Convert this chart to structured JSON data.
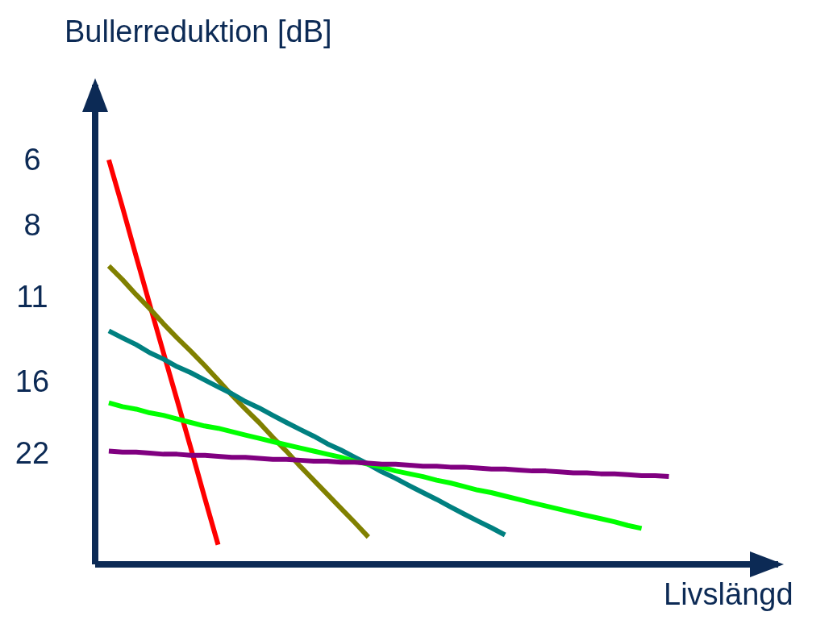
{
  "chart_data": {
    "type": "line",
    "xlabel": "Livslängd",
    "ylabel": "Bullerreduktion [dB]",
    "log": "y",
    "ylim": [
      36,
      4.3
    ],
    "yticks": [
      6,
      8,
      11,
      16,
      22
    ],
    "tick_labels": "y",
    "grid": false,
    "legend": false,
    "marker": "none",
    "line_style": "solid",
    "categories": [
      null,
      null,
      null,
      null,
      null,
      null,
      null,
      null,
      null,
      null,
      null,
      null,
      null,
      null,
      null,
      null,
      null,
      null,
      null,
      null,
      null,
      null,
      null,
      null,
      null,
      null,
      null,
      null,
      null,
      null,
      null,
      null,
      null,
      null,
      null,
      null,
      null,
      null,
      null,
      null,
      null,
      null,
      null,
      null,
      null,
      null,
      null,
      null,
      null,
      null,
      null
    ],
    "series": [
      {
        "color": "#ff0000",
        "values": [
          null,
          6,
          7.4,
          9.2,
          11.4,
          14.1,
          17.4,
          21.5,
          26.7,
          33,
          null,
          null,
          null,
          null,
          null,
          null,
          null,
          null,
          null,
          null,
          null,
          null,
          null,
          null,
          null,
          null,
          null,
          null,
          null,
          null,
          null,
          null,
          null,
          null,
          null,
          null,
          null,
          null,
          null,
          null,
          null,
          null,
          null,
          null,
          null,
          null,
          null,
          null,
          null,
          null,
          null
        ]
      },
      {
        "color": "#808000",
        "values": [
          null,
          9.6,
          10.2,
          10.9,
          11.6,
          12.4,
          13.2,
          14.0,
          14.9,
          15.9,
          17.0,
          18.1,
          19.2,
          20.5,
          21.8,
          23.3,
          24.8,
          26.4,
          28.1,
          29.9,
          31.9,
          null,
          null,
          null,
          null,
          null,
          null,
          null,
          null,
          null,
          null,
          null,
          null,
          null,
          null,
          null,
          null,
          null,
          null,
          null,
          null,
          null,
          null,
          null,
          null,
          null,
          null,
          null,
          null,
          null,
          null
        ]
      },
      {
        "color": "#008080",
        "values": [
          null,
          12.8,
          13.2,
          13.6,
          14.1,
          14.5,
          15.0,
          15.4,
          15.9,
          16.4,
          16.9,
          17.5,
          18.0,
          18.6,
          19.2,
          19.8,
          20.4,
          21.1,
          21.7,
          22.4,
          23.1,
          23.9,
          24.6,
          25.4,
          26.2,
          27.0,
          27.9,
          28.8,
          29.7,
          30.6,
          31.6,
          null,
          null,
          null,
          null,
          null,
          null,
          null,
          null,
          null,
          null,
          null,
          null,
          null,
          null,
          null,
          null,
          null,
          null,
          null,
          null
        ]
      },
      {
        "color": "#00ff00",
        "values": [
          null,
          17.6,
          17.9,
          18.1,
          18.4,
          18.6,
          18.9,
          19.2,
          19.5,
          19.7,
          20.0,
          20.3,
          20.6,
          20.9,
          21.2,
          21.5,
          21.8,
          22.1,
          22.4,
          22.8,
          23.1,
          23.4,
          23.8,
          24.1,
          24.4,
          24.8,
          25.1,
          25.5,
          25.9,
          26.2,
          26.6,
          27.0,
          27.4,
          27.8,
          28.2,
          28.6,
          29.0,
          29.4,
          29.8,
          30.3,
          30.7,
          null,
          null,
          null,
          null,
          null,
          null,
          null,
          null,
          null,
          null
        ]
      },
      {
        "color": "#800080",
        "values": [
          null,
          21.8,
          21.9,
          21.9,
          22.0,
          22.1,
          22.1,
          22.2,
          22.2,
          22.3,
          22.4,
          22.4,
          22.5,
          22.6,
          22.6,
          22.7,
          22.8,
          22.8,
          22.9,
          22.9,
          23.0,
          23.1,
          23.1,
          23.2,
          23.3,
          23.3,
          23.4,
          23.4,
          23.5,
          23.6,
          23.6,
          23.7,
          23.8,
          23.8,
          23.9,
          24.0,
          24.0,
          24.1,
          24.1,
          24.2,
          24.3,
          24.3,
          24.4,
          null,
          null,
          null,
          null,
          null,
          null,
          null,
          null
        ]
      }
    ]
  }
}
